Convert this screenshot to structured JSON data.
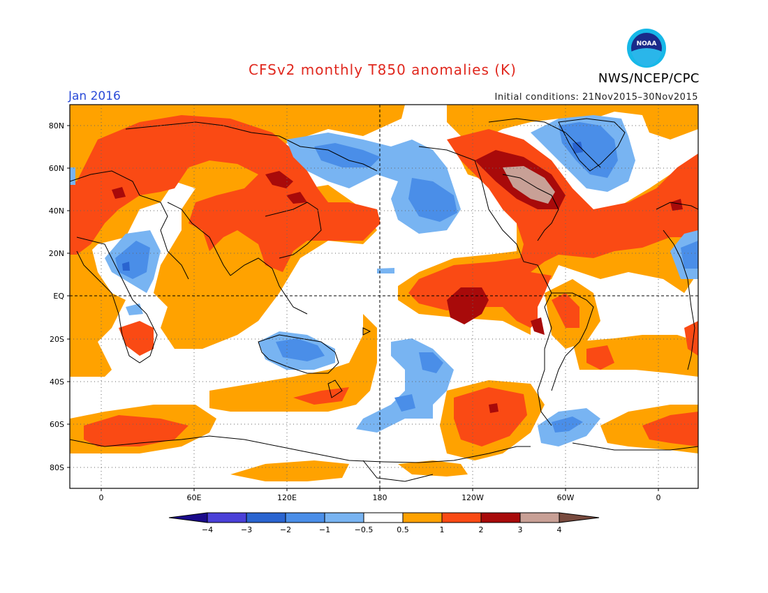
{
  "header": {
    "title": "CFSv2 monthly T850 anomalies (K)",
    "agency": "NWS/NCEP/CPC",
    "period": "Jan 2016",
    "initial_conditions": "Initial conditions: 21Nov2015–30Nov2015",
    "logo_text": "NOAA"
  },
  "map": {
    "latitude_labels": [
      "80N",
      "60N",
      "40N",
      "20N",
      "EQ",
      "20S",
      "40S",
      "60S",
      "80S"
    ],
    "longitude_labels": [
      "0",
      "60E",
      "120E",
      "180",
      "120W",
      "60W",
      "0"
    ],
    "projection": "cylindrical equidistant",
    "grid": "dotted",
    "reference_lines": [
      "EQ",
      "180"
    ]
  },
  "colorbar": {
    "labels": [
      "−4",
      "−3",
      "−2",
      "−1",
      "−0.5",
      "0.5",
      "1",
      "2",
      "3",
      "4"
    ],
    "colors": [
      "#1a0a8a",
      "#4a40d8",
      "#2a64d0",
      "#4a8ee8",
      "#78b4f2",
      "#ffffff",
      "#ffa200",
      "#fa4a14",
      "#a80a0a",
      "#c8a096",
      "#784a3e"
    ]
  },
  "colors": {
    "title": "#e0281e",
    "period": "#2a4bd8",
    "ocean_background": "#ffffff"
  }
}
